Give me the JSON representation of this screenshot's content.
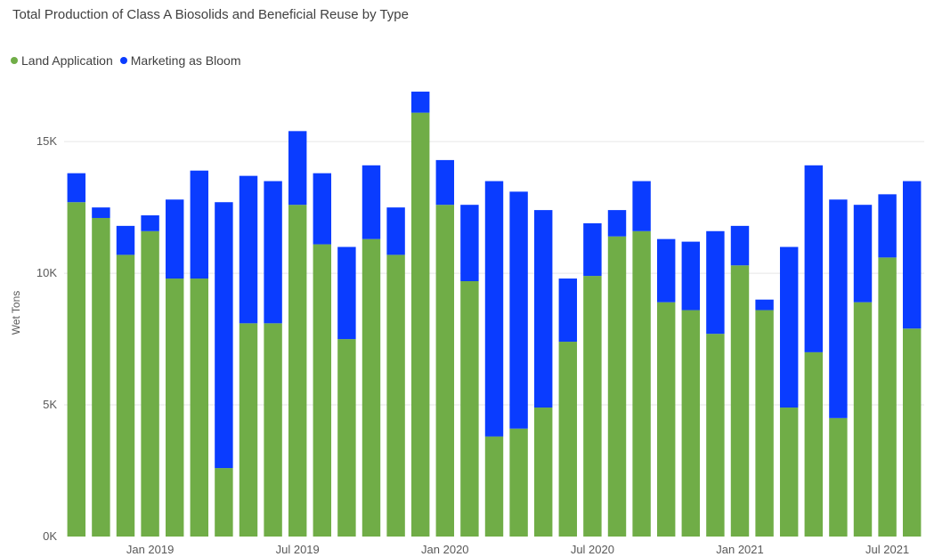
{
  "chart_data": {
    "type": "bar",
    "stacked": true,
    "title": "Total Production of Class A Biosolids and Beneficial Reuse by Type",
    "ylabel": "Wet Tons",
    "xlabel": "",
    "ylim": [
      0,
      17000
    ],
    "grid": true,
    "legend_position": "top-left",
    "y_ticks": [
      "0K",
      "5K",
      "10K",
      "15K"
    ],
    "y_tick_values": [
      0,
      5000,
      10000,
      15000
    ],
    "x_tick_labels": [
      {
        "label": "Jan 2019",
        "index": 3
      },
      {
        "label": "Jul 2019",
        "index": 9
      },
      {
        "label": "Jan 2020",
        "index": 15
      },
      {
        "label": "Jul 2020",
        "index": 21
      },
      {
        "label": "Jan 2021",
        "index": 27
      },
      {
        "label": "Jul 2021",
        "index": 33
      }
    ],
    "categories": [
      "Oct 2018",
      "Nov 2018",
      "Dec 2018",
      "Jan 2019",
      "Feb 2019",
      "Mar 2019",
      "Apr 2019",
      "May 2019",
      "Jun 2019",
      "Jul 2019",
      "Aug 2019",
      "Sep 2019",
      "Oct 2019",
      "Nov 2019",
      "Dec 2019",
      "Jan 2020",
      "Feb 2020",
      "Mar 2020",
      "Apr 2020",
      "May 2020",
      "Jun 2020",
      "Jul 2020",
      "Aug 2020",
      "Sep 2020",
      "Oct 2020",
      "Nov 2020",
      "Dec 2020",
      "Jan 2021",
      "Feb 2021",
      "Mar 2021",
      "Apr 2021",
      "May 2021",
      "Jun 2021",
      "Jul 2021",
      "Aug 2021"
    ],
    "series": [
      {
        "name": "Land Application",
        "color": "#70ad47",
        "values": [
          12700,
          12100,
          10700,
          11600,
          9800,
          9800,
          2600,
          8100,
          8100,
          12600,
          11100,
          7500,
          11300,
          10700,
          16100,
          12600,
          9700,
          3800,
          4100,
          4900,
          7400,
          9900,
          11400,
          11600,
          8900,
          8600,
          7700,
          10300,
          8600,
          4900,
          7000,
          4500,
          8900,
          10600,
          7900
        ]
      },
      {
        "name": "Marketing as Bloom",
        "color": "#0a3cff",
        "values": [
          1100,
          400,
          1100,
          600,
          3000,
          4100,
          10100,
          5600,
          5400,
          2800,
          2700,
          3500,
          2800,
          1800,
          800,
          1700,
          2900,
          9700,
          9000,
          7500,
          2400,
          2000,
          1000,
          1900,
          2400,
          2600,
          3900,
          1500,
          400,
          6100,
          7100,
          8300,
          3700,
          2400,
          5600
        ]
      }
    ]
  }
}
